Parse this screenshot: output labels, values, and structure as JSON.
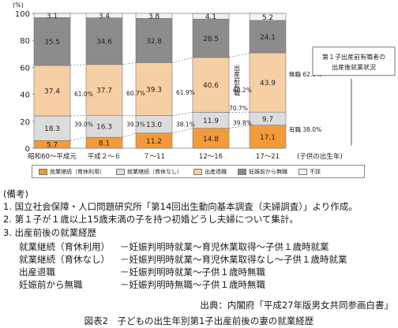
{
  "chart_data": {
    "type": "bar",
    "stacked": true,
    "unit_label": "(%)",
    "ylim": [
      0,
      100
    ],
    "yticks": [
      "0",
      "20",
      "40",
      "60",
      "80",
      "100"
    ],
    "categories": [
      "昭和60～平成元",
      "平成２～６",
      "７～11",
      "12～16",
      "17～21"
    ],
    "category_note": "(子供の出生年)",
    "series": [
      {
        "name": "就業継続（育休利用）",
        "color": "#f39a3b",
        "values": [
          5.7,
          8.1,
          11.2,
          14.8,
          17.1
        ]
      },
      {
        "name": "就業継続（育休なし）",
        "color": "#dcdcdc",
        "values": [
          18.3,
          16.3,
          13.0,
          11.9,
          9.7
        ]
      },
      {
        "name": "出産退職",
        "color": "#f6cfa4",
        "values": [
          37.4,
          37.7,
          39.3,
          40.6,
          43.9
        ]
      },
      {
        "name": "妊娠前から無職",
        "color": "#8c8c8c",
        "values": [
          35.5,
          34.6,
          32.8,
          28.5,
          24.1
        ]
      },
      {
        "name": "不詳",
        "color": "#f2f2f2",
        "values": [
          3.1,
          3.4,
          3.8,
          4.1,
          5.2
        ]
      }
    ],
    "continued_labels": [
      "39.0%",
      "39.3%",
      "38.1%",
      "39.8%"
    ],
    "left_labels": [
      "61.0%",
      "60.7%",
      "61.9%",
      "60.2%"
    ],
    "after_birth_total_label": "70.7%",
    "vertical_label": "出産前有職",
    "right_labels": {
      "jobless": "無職 62.0%",
      "employed": "有職 38.0%"
    },
    "annotation_box": [
      "第１子出産前有職者の",
      "出産後就業状況"
    ]
  },
  "notes": {
    "heading": "(備考)",
    "items": [
      "1.  国立社会保障・人口問題研究所「第14回出生動向基本調査（夫婦調査）」より作成。",
      "2.  第１子が１歳以上15歳未満の子を持つ初婚どうし夫婦について集計。",
      "3.  出産前後の就業経歴"
    ],
    "definitions": [
      {
        "term": "就業継続（育休利用）",
        "desc": "－妊娠判明時就業～育児休業取得～子供１歳時就業"
      },
      {
        "term": "就業継続（育休なし）",
        "desc": "－妊娠判明時就業～育児休業取得なし～子供１歳時就業"
      },
      {
        "term": "出産退職",
        "desc": "－妊娠判明時就業～子供１歳時無職"
      },
      {
        "term": "妊娠前から無職",
        "desc": "－妊娠判明時無職～子供１歳時無職"
      }
    ]
  },
  "source": "出典：内閣府「平成27年版男女共同参画白書」",
  "figure_title": "図表2　子どもの出生年別第1子出産前後の妻の就業経歴"
}
